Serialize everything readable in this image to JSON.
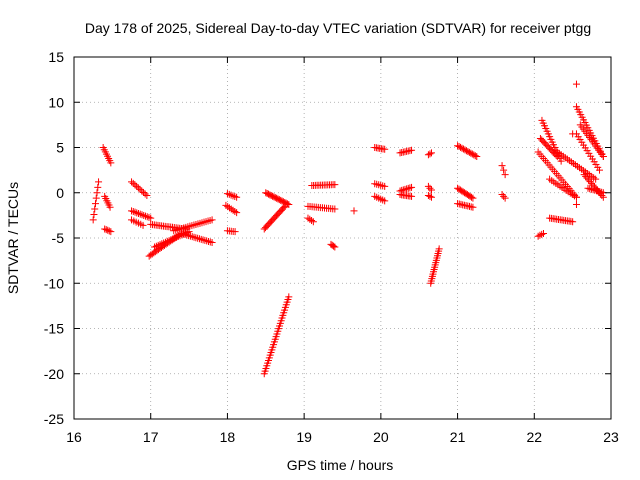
{
  "chart_data": {
    "type": "scatter",
    "title": "Day 178 of 2025, Sidereal Day-to-day VTEC variation (SDTVAR) for receiver ptgg",
    "xlabel": "GPS time / hours",
    "ylabel": "SDTVAR / TECUs",
    "xlim": [
      16,
      23
    ],
    "ylim": [
      -25,
      15
    ],
    "xticks": [
      "16",
      "17",
      "18",
      "19",
      "20",
      "21",
      "22",
      "23"
    ],
    "yticks": [
      "15",
      "10",
      "5",
      "0",
      "-5",
      "-10",
      "-15",
      "-20",
      "-25"
    ],
    "xtick_values": [
      16,
      17,
      18,
      19,
      20,
      21,
      22,
      23
    ],
    "ytick_values": [
      15,
      10,
      5,
      0,
      -5,
      -10,
      -15,
      -20,
      -25
    ],
    "grid": true,
    "marker": "+",
    "color": "#ff0000",
    "segments": [
      {
        "x": [
          16.25,
          16.32
        ],
        "y": [
          -3.0,
          1.2
        ],
        "n": 8
      },
      {
        "x": [
          16.38,
          16.48
        ],
        "y": [
          5.0,
          3.3
        ],
        "n": 8
      },
      {
        "x": [
          16.4,
          16.47
        ],
        "y": [
          -0.4,
          -1.6
        ],
        "n": 6
      },
      {
        "x": [
          16.4,
          16.48
        ],
        "y": [
          -4.0,
          -4.3
        ],
        "n": 5
      },
      {
        "x": [
          16.75,
          16.95
        ],
        "y": [
          1.2,
          -0.3
        ],
        "n": 10
      },
      {
        "x": [
          16.75,
          17.0
        ],
        "y": [
          -2.0,
          -2.8
        ],
        "n": 12
      },
      {
        "x": [
          16.75,
          16.9
        ],
        "y": [
          -3.0,
          -3.6
        ],
        "n": 6
      },
      {
        "x": [
          16.98,
          17.4
        ],
        "y": [
          -7.0,
          -4.5
        ],
        "n": 22
      },
      {
        "x": [
          17.0,
          17.45
        ],
        "y": [
          -3.5,
          -4.0
        ],
        "n": 20
      },
      {
        "x": [
          17.05,
          17.5
        ],
        "y": [
          -6.0,
          -4.3
        ],
        "n": 20
      },
      {
        "x": [
          17.4,
          17.8
        ],
        "y": [
          -4.5,
          -5.5
        ],
        "n": 18
      },
      {
        "x": [
          17.3,
          17.8
        ],
        "y": [
          -4.2,
          -3.0
        ],
        "n": 20
      },
      {
        "x": [
          18.0,
          18.12
        ],
        "y": [
          -0.1,
          -0.5
        ],
        "n": 6
      },
      {
        "x": [
          17.98,
          18.12
        ],
        "y": [
          -1.4,
          -2.2
        ],
        "n": 7
      },
      {
        "x": [
          18.0,
          18.1
        ],
        "y": [
          -4.2,
          -4.3
        ],
        "n": 5
      },
      {
        "x": [
          18.48,
          18.8
        ],
        "y": [
          -20.0,
          -11.5
        ],
        "n": 30
      },
      {
        "x": [
          18.48,
          18.75
        ],
        "y": [
          -4.0,
          -1.5
        ],
        "n": 18
      },
      {
        "x": [
          18.5,
          18.8
        ],
        "y": [
          0.0,
          -1.3
        ],
        "n": 18
      },
      {
        "x": [
          19.1,
          19.4
        ],
        "y": [
          0.8,
          0.9
        ],
        "n": 14
      },
      {
        "x": [
          19.05,
          19.4
        ],
        "y": [
          -1.5,
          -1.8
        ],
        "n": 14
      },
      {
        "x": [
          19.05,
          19.12
        ],
        "y": [
          -2.8,
          -3.2
        ],
        "n": 4
      },
      {
        "x": [
          19.35,
          19.4
        ],
        "y": [
          -5.7,
          -6.0
        ],
        "n": 4
      },
      {
        "x": [
          19.65,
          19.65
        ],
        "y": [
          -2.0,
          -2.0
        ],
        "n": 1
      },
      {
        "x": [
          19.92,
          20.05
        ],
        "y": [
          5.0,
          4.8
        ],
        "n": 7
      },
      {
        "x": [
          19.92,
          20.05
        ],
        "y": [
          1.0,
          0.7
        ],
        "n": 6
      },
      {
        "x": [
          19.92,
          20.05
        ],
        "y": [
          -0.4,
          -0.9
        ],
        "n": 6
      },
      {
        "x": [
          20.25,
          20.4
        ],
        "y": [
          4.4,
          4.7
        ],
        "n": 8
      },
      {
        "x": [
          20.25,
          20.4
        ],
        "y": [
          0.2,
          0.6
        ],
        "n": 8
      },
      {
        "x": [
          20.25,
          20.4
        ],
        "y": [
          -0.2,
          -0.4
        ],
        "n": 8
      },
      {
        "x": [
          20.62,
          20.66
        ],
        "y": [
          4.2,
          4.4
        ],
        "n": 3
      },
      {
        "x": [
          20.62,
          20.66
        ],
        "y": [
          0.7,
          0.3
        ],
        "n": 3
      },
      {
        "x": [
          20.62,
          20.66
        ],
        "y": [
          -0.3,
          -0.5
        ],
        "n": 3
      },
      {
        "x": [
          20.65,
          20.76
        ],
        "y": [
          -10.0,
          -6.2
        ],
        "n": 16
      },
      {
        "x": [
          21.0,
          21.25
        ],
        "y": [
          5.2,
          4.0
        ],
        "n": 14
      },
      {
        "x": [
          21.0,
          21.2
        ],
        "y": [
          0.5,
          -0.6
        ],
        "n": 12
      },
      {
        "x": [
          21.0,
          21.2
        ],
        "y": [
          -1.2,
          -1.6
        ],
        "n": 10
      },
      {
        "x": [
          21.58,
          21.62
        ],
        "y": [
          3.0,
          2.0
        ],
        "n": 3
      },
      {
        "x": [
          21.58,
          21.62
        ],
        "y": [
          -0.2,
          -0.6
        ],
        "n": 3
      },
      {
        "x": [
          22.05,
          22.12
        ],
        "y": [
          -4.8,
          -4.5
        ],
        "n": 4
      },
      {
        "x": [
          22.08,
          22.3
        ],
        "y": [
          6.0,
          4.0
        ],
        "n": 14
      },
      {
        "x": [
          22.1,
          22.35
        ],
        "y": [
          8.0,
          3.5
        ],
        "n": 16
      },
      {
        "x": [
          22.05,
          22.55
        ],
        "y": [
          4.5,
          -0.5
        ],
        "n": 22
      },
      {
        "x": [
          22.2,
          22.55
        ],
        "y": [
          1.5,
          -0.5
        ],
        "n": 14
      },
      {
        "x": [
          22.2,
          22.5
        ],
        "y": [
          -2.8,
          -3.2
        ],
        "n": 14
      },
      {
        "x": [
          22.3,
          22.8
        ],
        "y": [
          4.5,
          1.5
        ],
        "n": 20
      },
      {
        "x": [
          22.55,
          22.9
        ],
        "y": [
          9.5,
          4.0
        ],
        "n": 20
      },
      {
        "x": [
          22.6,
          22.9
        ],
        "y": [
          7.5,
          4.0
        ],
        "n": 16
      },
      {
        "x": [
          22.55,
          22.85
        ],
        "y": [
          6.5,
          2.5
        ],
        "n": 14
      },
      {
        "x": [
          22.65,
          22.9
        ],
        "y": [
          2.0,
          -0.5
        ],
        "n": 14
      },
      {
        "x": [
          22.7,
          22.9
        ],
        "y": [
          0.5,
          0.0
        ],
        "n": 10
      },
      {
        "x": [
          22.55,
          22.55
        ],
        "y": [
          12.0,
          12.0
        ],
        "n": 1
      },
      {
        "x": [
          22.5,
          22.5
        ],
        "y": [
          6.5,
          6.5
        ],
        "n": 1
      },
      {
        "x": [
          22.55,
          22.55
        ],
        "y": [
          -1.3,
          -1.3
        ],
        "n": 1
      }
    ]
  }
}
